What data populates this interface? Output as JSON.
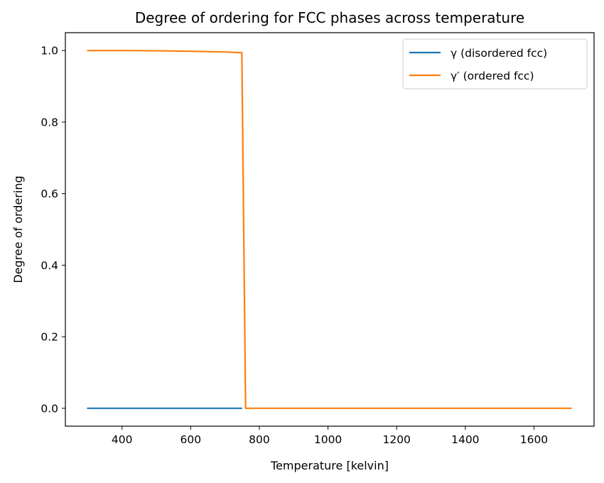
{
  "chart_data": {
    "type": "line",
    "title": "Degree of ordering for FCC phases across temperature",
    "xlabel": "Temperature [kelvin]",
    "ylabel": "Degree of ordering",
    "xlim": [
      235,
      1775
    ],
    "ylim": [
      -0.05,
      1.05
    ],
    "xticks": [
      400,
      600,
      800,
      1000,
      1200,
      1400,
      1600
    ],
    "yticks": [
      0.0,
      0.2,
      0.4,
      0.6,
      0.8,
      1.0
    ],
    "xtick_labels": [
      "400",
      "600",
      "800",
      "1000",
      "1200",
      "1400",
      "1600"
    ],
    "ytick_labels": [
      "0.0",
      "0.2",
      "0.4",
      "0.6",
      "0.8",
      "1.0"
    ],
    "grid": false,
    "legend_position": "top-right",
    "series": [
      {
        "name": "γ (disordered fcc)",
        "color": "#1f77b4",
        "points": [
          [
            298,
            0.0
          ],
          [
            750,
            0.0
          ]
        ]
      },
      {
        "name": "γ′ (ordered fcc)",
        "color": "#ff7f0e",
        "points": [
          [
            298,
            1.0
          ],
          [
            400,
            1.0
          ],
          [
            500,
            0.9995
          ],
          [
            600,
            0.998
          ],
          [
            650,
            0.997
          ],
          [
            700,
            0.996
          ],
          [
            749,
            0.994
          ],
          [
            760,
            0.0
          ],
          [
            800,
            0.0
          ],
          [
            1000,
            0.0
          ],
          [
            1200,
            0.0
          ],
          [
            1400,
            0.0
          ],
          [
            1600,
            0.0
          ],
          [
            1710,
            0.0
          ]
        ]
      }
    ]
  }
}
